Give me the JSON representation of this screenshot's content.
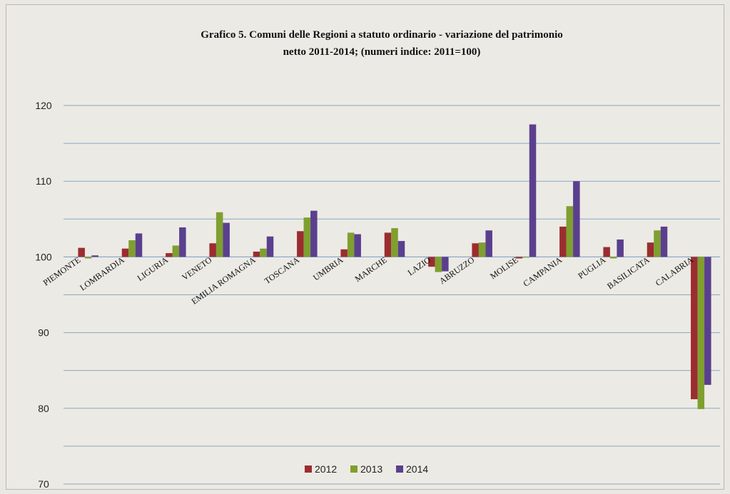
{
  "chart_data": {
    "type": "bar",
    "title": "Grafico 5. Comuni delle Regioni a statuto ordinario - variazione del patrimonio",
    "subtitle": "netto 2011-2014; (numeri indice: 2011=100)",
    "categories": [
      "PIEMONTE",
      "LOMBARDIA",
      "LIGURIA",
      "VENETO",
      "EMILIA ROMAGNA",
      "TOSCANA",
      "UMBRIA",
      "MARCHE",
      "LAZIO",
      "ABRUZZO",
      "MOLISE",
      "CAMPANIA",
      "PUGLIA",
      "BASILICATA",
      "CALABRIA"
    ],
    "series": [
      {
        "name": "2012",
        "color": "#9b2d30",
        "values": [
          101.2,
          101.1,
          100.5,
          101.8,
          100.7,
          103.4,
          101.0,
          103.2,
          98.7,
          101.8,
          99.8,
          104.0,
          101.3,
          101.9,
          81.2
        ]
      },
      {
        "name": "2013",
        "color": "#7f9f2f",
        "values": [
          99.8,
          102.2,
          101.5,
          105.9,
          101.1,
          105.2,
          103.2,
          103.8,
          98.0,
          101.9,
          100.0,
          106.7,
          99.8,
          103.5,
          79.9
        ]
      },
      {
        "name": "2014",
        "color": "#5a3f8e",
        "values": [
          100.2,
          103.1,
          103.9,
          104.5,
          102.7,
          106.1,
          103.0,
          102.1,
          98.1,
          103.5,
          117.5,
          110.0,
          102.3,
          104.0,
          83.1
        ]
      }
    ],
    "yticks": [
      120,
      110,
      100,
      90,
      80,
      70
    ],
    "ylim": [
      70,
      120
    ],
    "baseline": 100,
    "grid": true,
    "legend_position": "bottom-center"
  }
}
